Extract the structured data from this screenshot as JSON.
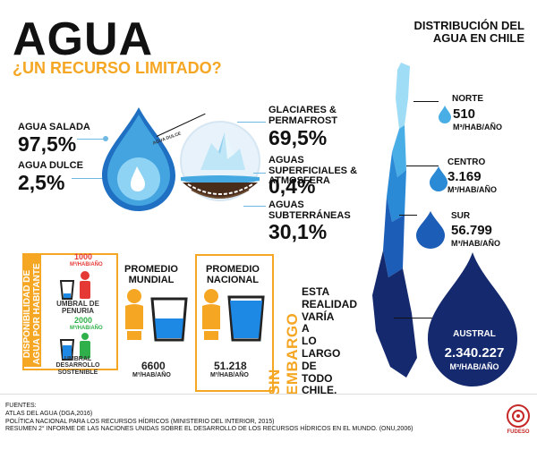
{
  "header": {
    "title": "AGUA",
    "subtitle": "¿UN RECURSO LIMITADO?"
  },
  "world": {
    "salada": {
      "label": "AGUA SALADA",
      "value": "97,5%"
    },
    "dulce": {
      "label": "AGUA DULCE",
      "value": "2,5%"
    },
    "drop_small_label": "AGUA DULCE",
    "glaciares": {
      "label": "GLACIARES & PERMAFROST",
      "value": "69,5%"
    },
    "superficiales": {
      "label": "AGUAS SUPERFICIALES & ATMOSFERA",
      "value": "0,4%"
    },
    "subterraneas": {
      "label": "AGUAS SUBTERRÁNEAS",
      "value": "30,1%"
    }
  },
  "availability": {
    "vertical_title": "DISPONIBILIDAD DE AGUA POR HABITANTE",
    "penuria_value": "1000",
    "penuria_unit": "M³/HAB/AÑO",
    "penuria_label": "UMBRAL DE PENURIA",
    "sostenible_value": "2000",
    "sostenible_unit": "M³/HAB/AÑO",
    "sostenible_label": "UMBRAL DESARROLLO SOSTENIBLE"
  },
  "promedio_mundial": {
    "title": "PROMEDIO MUNDIAL",
    "value": "6600",
    "unit": "M³/HAB/AÑO"
  },
  "promedio_nacional": {
    "title": "PROMEDIO NACIONAL",
    "value": "51.218",
    "unit": "M³/HAB/AÑO"
  },
  "sin_embargo": {
    "vertical": "SIN EMBARGO",
    "text": [
      "ESTA",
      "REALIDAD",
      "VARÍA",
      "A",
      "LO",
      "LARGO",
      "DE",
      "TODO",
      "CHILE."
    ]
  },
  "chile": {
    "title": "DISTRIBUCIÓN DEL AGUA EN CHILE",
    "regions": [
      {
        "name": "NORTE",
        "value": "510",
        "unit": "M³/HAB/AÑO",
        "color": "#4aaee6"
      },
      {
        "name": "CENTRO",
        "value": "3.169",
        "unit": "M³/HAB/AÑO",
        "color": "#2b8ad6"
      },
      {
        "name": "SUR",
        "value": "56.799",
        "unit": "M³/HAB/AÑO",
        "color": "#1c5db8"
      },
      {
        "name": "AUSTRAL",
        "value": "2.340.227",
        "unit": "M³/HAB/AÑO",
        "color": "#152a6e"
      }
    ]
  },
  "footer": {
    "heading": "FUENTES:",
    "lines": [
      "ATLAS DEL AGUA (DGA,2016)",
      "POLÍTICA NACIONAL PARA LOS RECURSOS HÍDRICOS (MINISTERIO DEL INTERIOR, 2015)",
      "RESUMEN 2° INFORME DE LAS NACIONES UNIDAS SOBRE EL DESARROLLO DE LOS RECURSOS HÍDRICOS EN EL MUNDO. (ONU,2006)"
    ],
    "logo_text": "FUDESO"
  }
}
